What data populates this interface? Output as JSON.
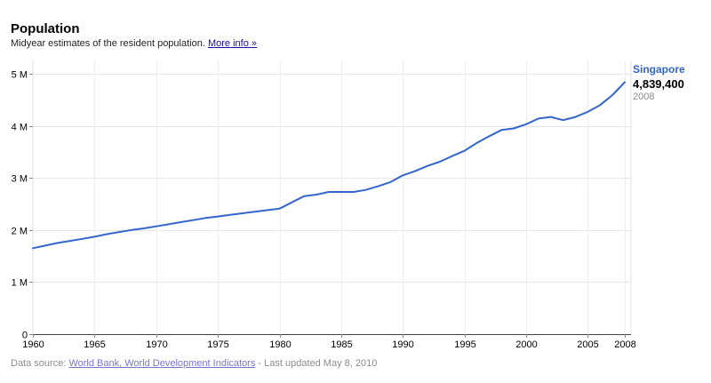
{
  "header": {
    "title": "Population",
    "subtitle": "Midyear estimates of the resident population.",
    "more_info_link": "More info »"
  },
  "legend": {
    "series_name": "Singapore",
    "latest_value": "4,839,400",
    "latest_year": "2008"
  },
  "footer": {
    "source_prefix": "Data source:",
    "source_link": "World Bank, World Development Indicators",
    "updated": "- Last updated May 8, 2010"
  },
  "chart_data": {
    "type": "line",
    "title": "Population",
    "subtitle": "Midyear estimates of the resident population.",
    "xlim": [
      1960,
      2008
    ],
    "ylim": [
      0,
      5000000
    ],
    "x_ticks": [
      1960,
      1965,
      1970,
      1975,
      1980,
      1985,
      1990,
      1995,
      2000,
      2005,
      2008
    ],
    "y_ticks": [
      {
        "value": 0,
        "label": "0"
      },
      {
        "value": 1000000,
        "label": "1 M"
      },
      {
        "value": 2000000,
        "label": "2 M"
      },
      {
        "value": 3000000,
        "label": "3 M"
      },
      {
        "value": 4000000,
        "label": "4 M"
      },
      {
        "value": 5000000,
        "label": "5 M"
      }
    ],
    "grid": true,
    "legend_position": "top-right",
    "series": [
      {
        "name": "Singapore",
        "color": "#3366cc",
        "x": [
          1960,
          1961,
          1962,
          1963,
          1964,
          1965,
          1966,
          1967,
          1968,
          1969,
          1970,
          1971,
          1972,
          1973,
          1974,
          1975,
          1976,
          1977,
          1978,
          1979,
          1980,
          1981,
          1982,
          1983,
          1984,
          1985,
          1986,
          1987,
          1988,
          1989,
          1990,
          1991,
          1992,
          1993,
          1994,
          1995,
          1996,
          1997,
          1998,
          1999,
          2000,
          2001,
          2002,
          2003,
          2004,
          2005,
          2006,
          2007,
          2008
        ],
        "values": [
          1650000,
          1700000,
          1750000,
          1790000,
          1830000,
          1870000,
          1920000,
          1960000,
          2000000,
          2030000,
          2070000,
          2110000,
          2150000,
          2190000,
          2230000,
          2260000,
          2290000,
          2320000,
          2350000,
          2380000,
          2410000,
          2530000,
          2650000,
          2680000,
          2730000,
          2730000,
          2730000,
          2770000,
          2840000,
          2920000,
          3050000,
          3130000,
          3230000,
          3310000,
          3420000,
          3520000,
          3670000,
          3800000,
          3920000,
          3950000,
          4030000,
          4140000,
          4170000,
          4110000,
          4170000,
          4270000,
          4400000,
          4590000,
          4839400
        ]
      }
    ]
  }
}
